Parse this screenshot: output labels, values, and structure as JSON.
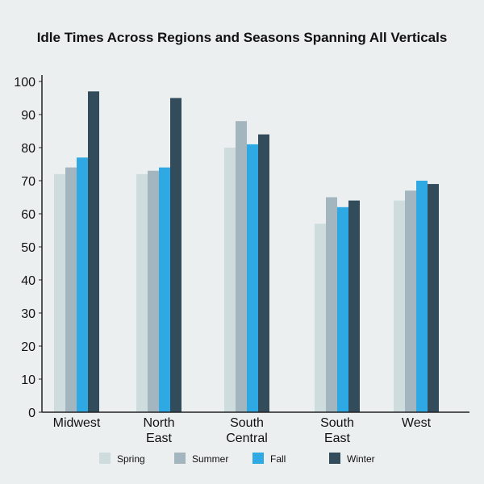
{
  "chart_data": {
    "type": "bar",
    "title": "Idle Times Across Regions and Seasons Spanning All Verticals",
    "xlabel": "",
    "ylabel": "",
    "ylim": [
      0,
      100
    ],
    "yticks": [
      0,
      10,
      20,
      30,
      40,
      50,
      60,
      70,
      80,
      90,
      100
    ],
    "categories": [
      [
        "Midwest"
      ],
      [
        "North",
        "East"
      ],
      [
        "South",
        "Central"
      ],
      [
        "South",
        "East"
      ],
      [
        "West"
      ]
    ],
    "series": [
      {
        "name": "Spring",
        "color": "#cfdcdd",
        "values": [
          72,
          72,
          80,
          57,
          64
        ]
      },
      {
        "name": "Summer",
        "color": "#a3b5be",
        "values": [
          74,
          73,
          88,
          65,
          67
        ]
      },
      {
        "name": "Fall",
        "color": "#2fa9e4",
        "values": [
          77,
          74,
          81,
          62,
          70
        ]
      },
      {
        "name": "Winter",
        "color": "#324c5c",
        "values": [
          97,
          95,
          84,
          64,
          69
        ]
      }
    ],
    "grid": false,
    "legend": "bottom"
  }
}
